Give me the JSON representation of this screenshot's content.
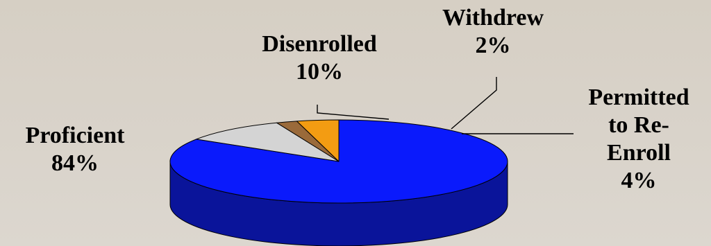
{
  "chart_data": {
    "type": "pie",
    "style": "3d",
    "slices": [
      {
        "name": "Proficient",
        "value": 84,
        "label": "84%",
        "color": "#0a1afc",
        "side_color": "#0a149a"
      },
      {
        "name": "Disenrolled",
        "value": 10,
        "label": "10%",
        "color": "#d4d4d4",
        "side_color": "#9a9a9a"
      },
      {
        "name": "Withdrew",
        "value": 2,
        "label": "2%",
        "color": "#9a6a3a",
        "side_color": "#5e3d1c"
      },
      {
        "name": "Permitted to Re-Enroll",
        "value": 4,
        "label": "4%",
        "color": "#f39c12",
        "side_color": "#b06e07"
      }
    ],
    "labels": {
      "proficient": [
        "Proficient",
        "84%"
      ],
      "disenrolled": [
        "Disenrolled",
        "10%"
      ],
      "withdrew": [
        "Withdrew",
        "2%"
      ],
      "permitted": [
        "Permitted",
        "to Re-",
        "Enroll",
        "4%"
      ]
    },
    "legend": "none"
  }
}
